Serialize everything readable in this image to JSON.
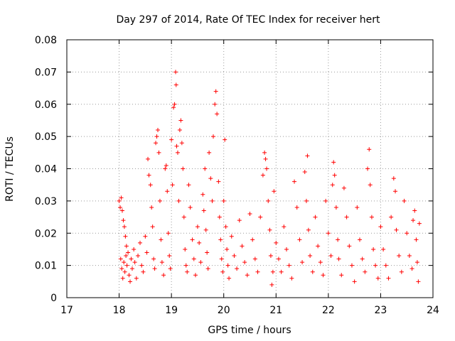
{
  "chart_data": {
    "type": "scatter",
    "title": "Day 297 of 2014, Rate Of TEC Index for receiver hert",
    "xlabel": "GPS time / hours",
    "ylabel": "ROTI / TECUs",
    "xlim": [
      17,
      24
    ],
    "ylim": [
      0,
      0.08
    ],
    "x_ticks": [
      "17",
      "18",
      "19",
      "20",
      "21",
      "22",
      "23",
      "24"
    ],
    "y_ticks": [
      "0",
      "0.01",
      "0.02",
      "0.03",
      "0.04",
      "0.05",
      "0.06",
      "0.07",
      "0.08"
    ],
    "grid": true,
    "marker": "plus",
    "series": [
      {
        "color": "#ff0000",
        "points": [
          [
            18.0,
            0.03
          ],
          [
            18.02,
            0.028
          ],
          [
            18.04,
            0.031
          ],
          [
            18.06,
            0.027
          ],
          [
            18.08,
            0.024
          ],
          [
            18.1,
            0.022
          ],
          [
            18.12,
            0.019
          ],
          [
            18.14,
            0.016
          ],
          [
            18.03,
            0.012
          ],
          [
            18.05,
            0.009
          ],
          [
            18.07,
            0.006
          ],
          [
            18.09,
            0.011
          ],
          [
            18.11,
            0.008
          ],
          [
            18.13,
            0.013
          ],
          [
            18.15,
            0.01
          ],
          [
            18.17,
            0.014
          ],
          [
            18.19,
            0.007
          ],
          [
            18.21,
            0.005
          ],
          [
            18.23,
            0.012
          ],
          [
            18.25,
            0.009
          ],
          [
            18.28,
            0.015
          ],
          [
            18.3,
            0.011
          ],
          [
            18.33,
            0.006
          ],
          [
            18.36,
            0.013
          ],
          [
            18.4,
            0.017
          ],
          [
            18.43,
            0.01
          ],
          [
            18.46,
            0.008
          ],
          [
            18.5,
            0.019
          ],
          [
            18.53,
            0.014
          ],
          [
            18.55,
            0.043
          ],
          [
            18.57,
            0.038
          ],
          [
            18.6,
            0.035
          ],
          [
            18.62,
            0.028
          ],
          [
            18.64,
            0.022
          ],
          [
            18.66,
            0.012
          ],
          [
            18.68,
            0.009
          ],
          [
            18.7,
            0.048
          ],
          [
            18.72,
            0.05
          ],
          [
            18.74,
            0.052
          ],
          [
            18.76,
            0.045
          ],
          [
            18.78,
            0.03
          ],
          [
            18.8,
            0.018
          ],
          [
            18.82,
            0.011
          ],
          [
            18.85,
            0.007
          ],
          [
            18.88,
            0.04
          ],
          [
            18.9,
            0.041
          ],
          [
            18.92,
            0.033
          ],
          [
            18.94,
            0.02
          ],
          [
            18.96,
            0.013
          ],
          [
            18.98,
            0.009
          ],
          [
            19.0,
            0.049
          ],
          [
            19.02,
            0.035
          ],
          [
            19.04,
            0.059
          ],
          [
            19.06,
            0.06
          ],
          [
            19.08,
            0.07
          ],
          [
            19.09,
            0.066
          ],
          [
            19.1,
            0.047
          ],
          [
            19.12,
            0.045
          ],
          [
            19.14,
            0.03
          ],
          [
            19.16,
            0.052
          ],
          [
            19.18,
            0.055
          ],
          [
            19.2,
            0.048
          ],
          [
            19.22,
            0.04
          ],
          [
            19.24,
            0.025
          ],
          [
            19.26,
            0.015
          ],
          [
            19.28,
            0.01
          ],
          [
            19.3,
            0.008
          ],
          [
            19.33,
            0.035
          ],
          [
            19.36,
            0.028
          ],
          [
            19.4,
            0.018
          ],
          [
            19.43,
            0.012
          ],
          [
            19.46,
            0.007
          ],
          [
            19.5,
            0.022
          ],
          [
            19.53,
            0.017
          ],
          [
            19.56,
            0.011
          ],
          [
            19.6,
            0.032
          ],
          [
            19.62,
            0.027
          ],
          [
            19.64,
            0.04
          ],
          [
            19.66,
            0.021
          ],
          [
            19.68,
            0.014
          ],
          [
            19.7,
            0.009
          ],
          [
            19.72,
            0.045
          ],
          [
            19.75,
            0.037
          ],
          [
            19.78,
            0.03
          ],
          [
            19.8,
            0.05
          ],
          [
            19.83,
            0.06
          ],
          [
            19.85,
            0.064
          ],
          [
            19.87,
            0.057
          ],
          [
            19.9,
            0.036
          ],
          [
            19.92,
            0.025
          ],
          [
            19.94,
            0.018
          ],
          [
            19.96,
            0.012
          ],
          [
            19.98,
            0.008
          ],
          [
            20.0,
            0.03
          ],
          [
            20.02,
            0.049
          ],
          [
            20.04,
            0.022
          ],
          [
            20.06,
            0.015
          ],
          [
            20.08,
            0.01
          ],
          [
            20.1,
            0.006
          ],
          [
            20.15,
            0.019
          ],
          [
            20.2,
            0.013
          ],
          [
            20.25,
            0.009
          ],
          [
            20.3,
            0.024
          ],
          [
            20.35,
            0.016
          ],
          [
            20.4,
            0.011
          ],
          [
            20.45,
            0.007
          ],
          [
            20.5,
            0.026
          ],
          [
            20.55,
            0.018
          ],
          [
            20.6,
            0.012
          ],
          [
            20.65,
            0.008
          ],
          [
            20.7,
            0.025
          ],
          [
            20.75,
            0.038
          ],
          [
            20.78,
            0.045
          ],
          [
            20.8,
            0.043
          ],
          [
            20.82,
            0.04
          ],
          [
            20.85,
            0.03
          ],
          [
            20.88,
            0.021
          ],
          [
            20.9,
            0.013
          ],
          [
            20.92,
            0.004
          ],
          [
            20.94,
            0.008
          ],
          [
            20.96,
            0.033
          ],
          [
            21.0,
            0.017
          ],
          [
            21.05,
            0.012
          ],
          [
            21.1,
            0.008
          ],
          [
            21.15,
            0.022
          ],
          [
            21.2,
            0.015
          ],
          [
            21.25,
            0.01
          ],
          [
            21.3,
            0.006
          ],
          [
            21.35,
            0.036
          ],
          [
            21.4,
            0.028
          ],
          [
            21.45,
            0.018
          ],
          [
            21.5,
            0.011
          ],
          [
            21.55,
            0.039
          ],
          [
            21.58,
            0.03
          ],
          [
            21.6,
            0.044
          ],
          [
            21.62,
            0.021
          ],
          [
            21.65,
            0.013
          ],
          [
            21.7,
            0.008
          ],
          [
            21.75,
            0.025
          ],
          [
            21.8,
            0.016
          ],
          [
            21.85,
            0.011
          ],
          [
            21.9,
            0.007
          ],
          [
            21.95,
            0.03
          ],
          [
            22.0,
            0.02
          ],
          [
            22.05,
            0.013
          ],
          [
            22.08,
            0.035
          ],
          [
            22.1,
            0.042
          ],
          [
            22.12,
            0.038
          ],
          [
            22.15,
            0.028
          ],
          [
            22.18,
            0.018
          ],
          [
            22.2,
            0.012
          ],
          [
            22.25,
            0.007
          ],
          [
            22.3,
            0.034
          ],
          [
            22.35,
            0.025
          ],
          [
            22.4,
            0.016
          ],
          [
            22.45,
            0.01
          ],
          [
            22.5,
            0.005
          ],
          [
            22.55,
            0.028
          ],
          [
            22.6,
            0.018
          ],
          [
            22.65,
            0.012
          ],
          [
            22.7,
            0.008
          ],
          [
            22.75,
            0.04
          ],
          [
            22.78,
            0.046
          ],
          [
            22.8,
            0.035
          ],
          [
            22.83,
            0.025
          ],
          [
            22.86,
            0.015
          ],
          [
            22.9,
            0.01
          ],
          [
            22.95,
            0.006
          ],
          [
            23.0,
            0.022
          ],
          [
            23.05,
            0.015
          ],
          [
            23.1,
            0.01
          ],
          [
            23.15,
            0.006
          ],
          [
            23.2,
            0.025
          ],
          [
            23.25,
            0.037
          ],
          [
            23.28,
            0.033
          ],
          [
            23.3,
            0.021
          ],
          [
            23.35,
            0.013
          ],
          [
            23.4,
            0.008
          ],
          [
            23.45,
            0.03
          ],
          [
            23.5,
            0.02
          ],
          [
            23.55,
            0.013
          ],
          [
            23.6,
            0.009
          ],
          [
            23.62,
            0.024
          ],
          [
            23.65,
            0.027
          ],
          [
            23.68,
            0.018
          ],
          [
            23.7,
            0.011
          ],
          [
            23.72,
            0.005
          ],
          [
            23.74,
            0.023
          ]
        ]
      }
    ]
  }
}
